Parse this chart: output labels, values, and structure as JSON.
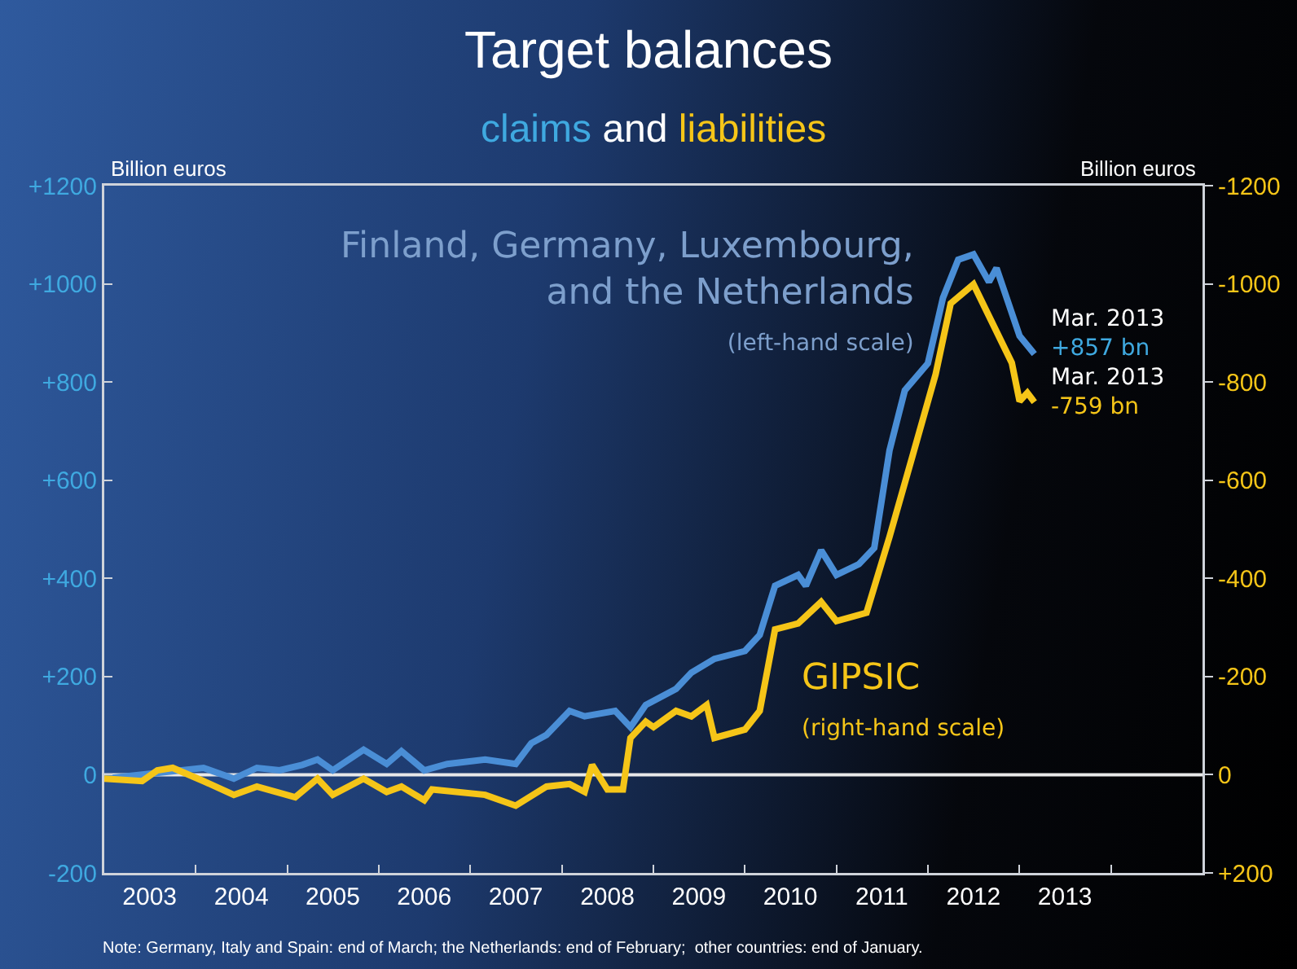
{
  "chart_data": {
    "type": "line",
    "title": "Target balances",
    "subtitle": "claims and liabilities",
    "ylabel": "Billion euros",
    "y2label": "Billion euros",
    "xlim": [
      "2003-01-01",
      "2015-01-01"
    ],
    "xticks": [
      {
        "value": "2003-07-01",
        "label": "2003"
      },
      {
        "value": "2004-07-01",
        "label": "2004"
      },
      {
        "value": "2005-07-01",
        "label": "2005"
      },
      {
        "value": "2006-07-01",
        "label": "2006"
      },
      {
        "value": "2007-07-01",
        "label": "2007"
      },
      {
        "value": "2008-07-01",
        "label": "2008"
      },
      {
        "value": "2009-07-01",
        "label": "2009"
      },
      {
        "value": "2010-07-01",
        "label": "2010"
      },
      {
        "value": "2011-07-01",
        "label": "2011"
      },
      {
        "value": "2012-07-01",
        "label": "2012"
      },
      {
        "value": "2013-07-01",
        "label": "2013"
      },
      {
        "value": "2004-01-01",
        "label": null
      },
      {
        "value": "2005-01-01",
        "label": null
      },
      {
        "value": "2006-01-01",
        "label": null
      },
      {
        "value": "2007-01-01",
        "label": null
      },
      {
        "value": "2008-01-01",
        "label": null
      },
      {
        "value": "2009-01-01",
        "label": null
      },
      {
        "value": "2010-01-01",
        "label": null
      },
      {
        "value": "2011-01-01",
        "label": null
      },
      {
        "value": "2012-01-01",
        "label": null
      },
      {
        "value": "2013-01-01",
        "label": null
      },
      {
        "value": "2014-01-01",
        "label": null
      }
    ],
    "ylim": [
      -200,
      1200
    ],
    "yticks": [
      {
        "value": 1200,
        "label": "+1200"
      },
      {
        "value": 1000,
        "label": "+1000"
      },
      {
        "value": 800,
        "label": "+800"
      },
      {
        "value": 600,
        "label": "+600"
      },
      {
        "value": 400,
        "label": "+400"
      },
      {
        "value": 200,
        "label": "+200"
      },
      0,
      -200
    ],
    "y2lim": [
      200,
      -1200
    ],
    "y2ticks": [
      -1200,
      -1000,
      -800,
      -600,
      -400,
      -200,
      0,
      {
        "value": 200,
        "label": "+200"
      }
    ],
    "grid": false,
    "ref_lines": [
      {
        "axis": "y",
        "value": 0,
        "color": "#e8e8e8"
      }
    ],
    "legend": false,
    "marker": "none",
    "line_style": "solid",
    "series": [
      {
        "name": "Finland, Germany, Luxembourg, and the Netherlands (left-hand scale)",
        "color": "#4a8ed6",
        "x": [
          "2003-01",
          "2004-02",
          "2004-06",
          "2004-09",
          "2004-12",
          "2005-03",
          "2005-05",
          "2005-07",
          "2005-11",
          "2006-02",
          "2006-04",
          "2006-07",
          "2006-10",
          "2007-03",
          "2007-07",
          "2007-09",
          "2007-11",
          "2008-02",
          "2008-04",
          "2008-08",
          "2008-10",
          "2008-12",
          "2009-04",
          "2009-06",
          "2009-09",
          "2010-01",
          "2010-03",
          "2010-05",
          "2010-08",
          "2010-09",
          "2010-11",
          "2011-01",
          "2011-04",
          "2011-06",
          "2011-08",
          "2011-10",
          "2012-01",
          "2012-03",
          "2012-05",
          "2012-07",
          "2012-09",
          "2012-10",
          "2013-01",
          "2013-03"
        ],
        "values": [
          -8,
          14,
          -8,
          14,
          9,
          20,
          31,
          9,
          51,
          22,
          48,
          9,
          22,
          31,
          22,
          64,
          81,
          130,
          119,
          130,
          97,
          142,
          175,
          208,
          236,
          252,
          285,
          385,
          407,
          385,
          457,
          407,
          429,
          462,
          661,
          783,
          838,
          971,
          1049,
          1060,
          1004,
          1032,
          894,
          857
        ]
      },
      {
        "name": "GIPSIC (right-hand scale)",
        "color": "#f5c518",
        "axis": "y2",
        "x": [
          "2003-01",
          "2003-06",
          "2003-08",
          "2003-10",
          "2004-02",
          "2004-06",
          "2004-09",
          "2005-02",
          "2005-05",
          "2005-07",
          "2005-11",
          "2006-02",
          "2006-04",
          "2006-07",
          "2006-08",
          "2007-03",
          "2007-07",
          "2007-11",
          "2008-02",
          "2008-04",
          "2008-05",
          "2008-07",
          "2008-09",
          "2008-10",
          "2008-12",
          "2009-01",
          "2009-04",
          "2009-06",
          "2009-08",
          "2009-09",
          "2010-01",
          "2010-03",
          "2010-05",
          "2010-08",
          "2010-11",
          "2011-01",
          "2011-05",
          "2011-08",
          "2011-11",
          "2012-02",
          "2012-04",
          "2012-07",
          "2012-12",
          "2013-01",
          "2013-02",
          "2013-03"
        ],
        "values": [
          8,
          13,
          -9,
          -14,
          13,
          41,
          24,
          46,
          8,
          41,
          8,
          35,
          24,
          52,
          30,
          41,
          63,
          24,
          19,
          35,
          -20,
          30,
          30,
          -75,
          -108,
          -97,
          -130,
          -119,
          -142,
          -75,
          -92,
          -130,
          -296,
          -308,
          -352,
          -313,
          -330,
          -485,
          -650,
          -816,
          -960,
          -999,
          -839,
          -761,
          -778,
          -759
        ]
      }
    ],
    "annotations": [
      {
        "text": "Mar. 2013\n+857 bn",
        "x": "2013-03",
        "y": 857
      },
      "Mar. 2013\n-759 bn",
      "Note: Germany, Italy and Spain: end of March; the Netherlands: end of February;  other countries: end of January."
    ]
  }
}
